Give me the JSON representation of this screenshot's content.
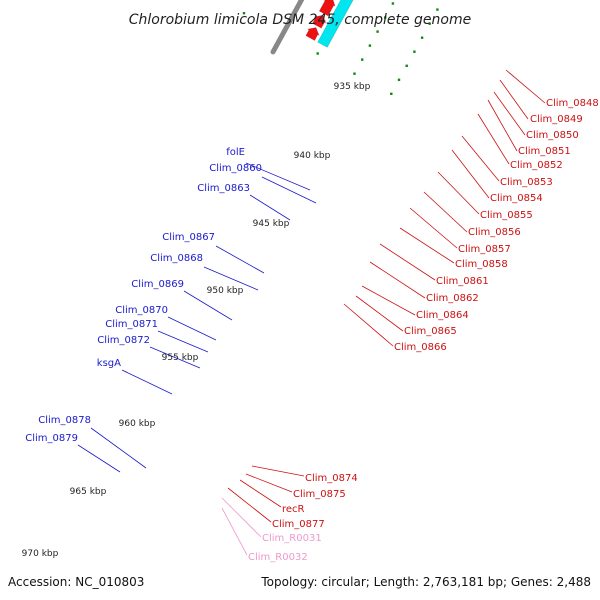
{
  "title": "Chlorobium limicola DSM 245, complete genome",
  "footer": {
    "accession": "Accession: NC_010803",
    "summary": "Topology: circular; Length: 2,763,181 bp; Genes: 2,488"
  },
  "colors": {
    "backbone": "#888888",
    "tick": "#118811",
    "forward_gene": "#1a1aee",
    "forward_operon": "#7060d8",
    "forward_light": "#4a8ac0",
    "reverse_gene": "#ee1111",
    "reverse_operon": "#00e5ee",
    "rna": "#ffaacc",
    "pseudo": "#aaaaaa",
    "olive": "#c8c080",
    "green": "#22bb22",
    "label_blue": "#1a1acc",
    "label_red": "#cc1111",
    "label_pink": "#ee99cc"
  },
  "ticks": [
    "935 kbp",
    "940 kbp",
    "945 kbp",
    "950 kbp",
    "955 kbp",
    "960 kbp",
    "965 kbp",
    "970 kbp"
  ],
  "left_labels": [
    "folE",
    "Clim_0860",
    "Clim_0863",
    "Clim_0867",
    "Clim_0868",
    "Clim_0869",
    "Clim_0870",
    "Clim_0871",
    "Clim_0872",
    "ksgA",
    "Clim_0878",
    "Clim_0879"
  ],
  "right_labels": [
    "Clim_0848",
    "Clim_0849",
    "Clim_0850",
    "Clim_0851",
    "Clim_0852",
    "Clim_0853",
    "Clim_0854",
    "Clim_0855",
    "Clim_0856",
    "Clim_0857",
    "Clim_0858",
    "Clim_0861",
    "Clim_0862",
    "Clim_0864",
    "Clim_0865",
    "Clim_0866"
  ],
  "bottom_labels": [
    "Clim_0874",
    "Clim_0875",
    "recR",
    "Clim_0877",
    "Clim_R0031",
    "Clim_R0032"
  ]
}
